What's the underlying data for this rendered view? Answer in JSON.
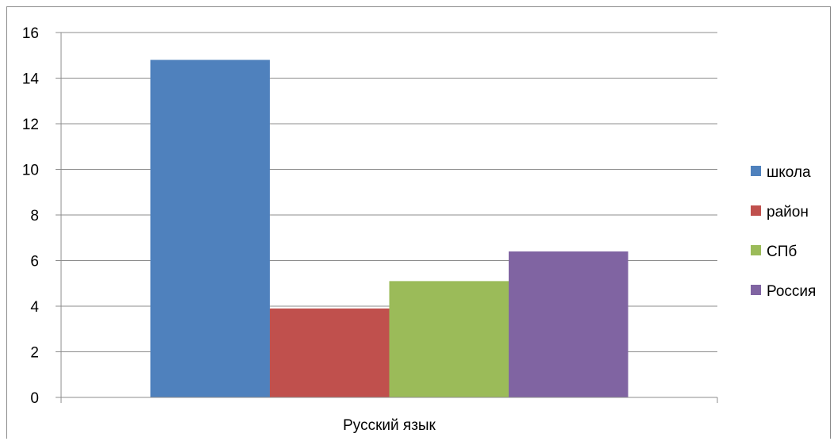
{
  "chart_data": {
    "type": "bar",
    "categories": [
      "Русский язык"
    ],
    "series": [
      {
        "name": "школа",
        "values": [
          14.8
        ],
        "color": "#4f81bd"
      },
      {
        "name": "район",
        "values": [
          3.9
        ],
        "color": "#c0504d"
      },
      {
        "name": "СПб",
        "values": [
          5.1
        ],
        "color": "#9bbb59"
      },
      {
        "name": "Россия",
        "values": [
          6.4
        ],
        "color": "#8064a2"
      }
    ],
    "ylim": [
      0,
      16
    ],
    "yticks": [
      0,
      2,
      4,
      6,
      8,
      10,
      12,
      14,
      16
    ],
    "grid": true,
    "legend": "right"
  }
}
